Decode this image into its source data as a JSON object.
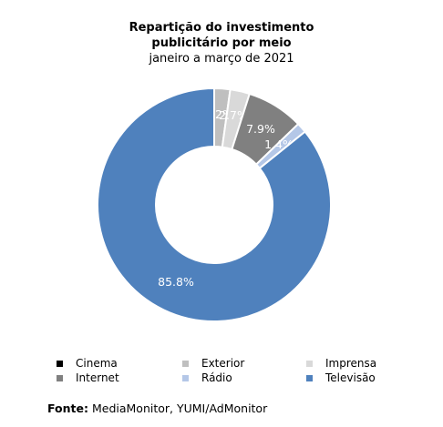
{
  "chart_data": {
    "type": "pie",
    "variant": "donut",
    "title_line1": "Repartição do investimento",
    "title_line2": "publicitário por meio",
    "subtitle": "janeiro a março de 2021",
    "series": [
      {
        "name": "Cinema",
        "value": 0.0,
        "label": "0.0%",
        "color": "#000000"
      },
      {
        "name": "Exterior",
        "value": 2.2,
        "label": "2.2%",
        "color": "#bfbfbf"
      },
      {
        "name": "Imprensa",
        "value": 2.7,
        "label": "2.7%",
        "color": "#d9d9d9"
      },
      {
        "name": "Internet",
        "value": 7.9,
        "label": "7.9%",
        "color": "#808080"
      },
      {
        "name": "Rádio",
        "value": 1.4,
        "label": "1.4%",
        "color": "#b4c7e7"
      },
      {
        "name": "Televisão",
        "value": 85.8,
        "label": "85.8%",
        "color": "#4f81bd"
      }
    ],
    "legend_position": "bottom"
  },
  "source": {
    "label": "Fonte:",
    "text": "MediaMonitor, YUMI/AdMonitor"
  }
}
